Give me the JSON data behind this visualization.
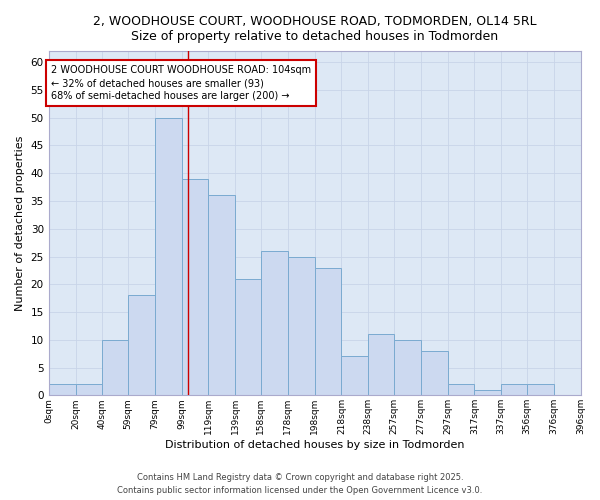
{
  "title_line1": "2, WOODHOUSE COURT, WOODHOUSE ROAD, TODMORDEN, OL14 5RL",
  "title_line2": "Size of property relative to detached houses in Todmorden",
  "xlabel": "Distribution of detached houses by size in Todmorden",
  "ylabel": "Number of detached properties",
  "bar_edges": [
    0,
    20,
    40,
    59,
    79,
    99,
    119,
    139,
    158,
    178,
    198,
    218,
    238,
    257,
    277,
    297,
    317,
    337,
    356,
    376,
    396
  ],
  "bar_heights": [
    2,
    2,
    10,
    18,
    50,
    39,
    36,
    21,
    26,
    25,
    23,
    7,
    11,
    10,
    8,
    2,
    1,
    2,
    2,
    0
  ],
  "bar_color": "#ccd9f0",
  "bar_edge_color": "#7aaad0",
  "grid_color": "#c8d4e8",
  "bg_color": "#eaf0f8",
  "plot_bg_color": "#dde8f5",
  "vline_x": 104,
  "vline_color": "#cc0000",
  "annotation_text": "2 WOODHOUSE COURT WOODHOUSE ROAD: 104sqm\n← 32% of detached houses are smaller (93)\n68% of semi-detached houses are larger (200) →",
  "annotation_box_color": "#ffffff",
  "annotation_box_edge": "#cc0000",
  "footnote": "Contains HM Land Registry data © Crown copyright and database right 2025.\nContains public sector information licensed under the Open Government Licence v3.0.",
  "tick_labels": [
    "0sqm",
    "20sqm",
    "40sqm",
    "59sqm",
    "79sqm",
    "99sqm",
    "119sqm",
    "139sqm",
    "158sqm",
    "178sqm",
    "198sqm",
    "218sqm",
    "238sqm",
    "257sqm",
    "277sqm",
    "297sqm",
    "317sqm",
    "337sqm",
    "356sqm",
    "376sqm",
    "396sqm"
  ],
  "ylim": [
    0,
    62
  ],
  "yticks": [
    0,
    5,
    10,
    15,
    20,
    25,
    30,
    35,
    40,
    45,
    50,
    55,
    60
  ]
}
